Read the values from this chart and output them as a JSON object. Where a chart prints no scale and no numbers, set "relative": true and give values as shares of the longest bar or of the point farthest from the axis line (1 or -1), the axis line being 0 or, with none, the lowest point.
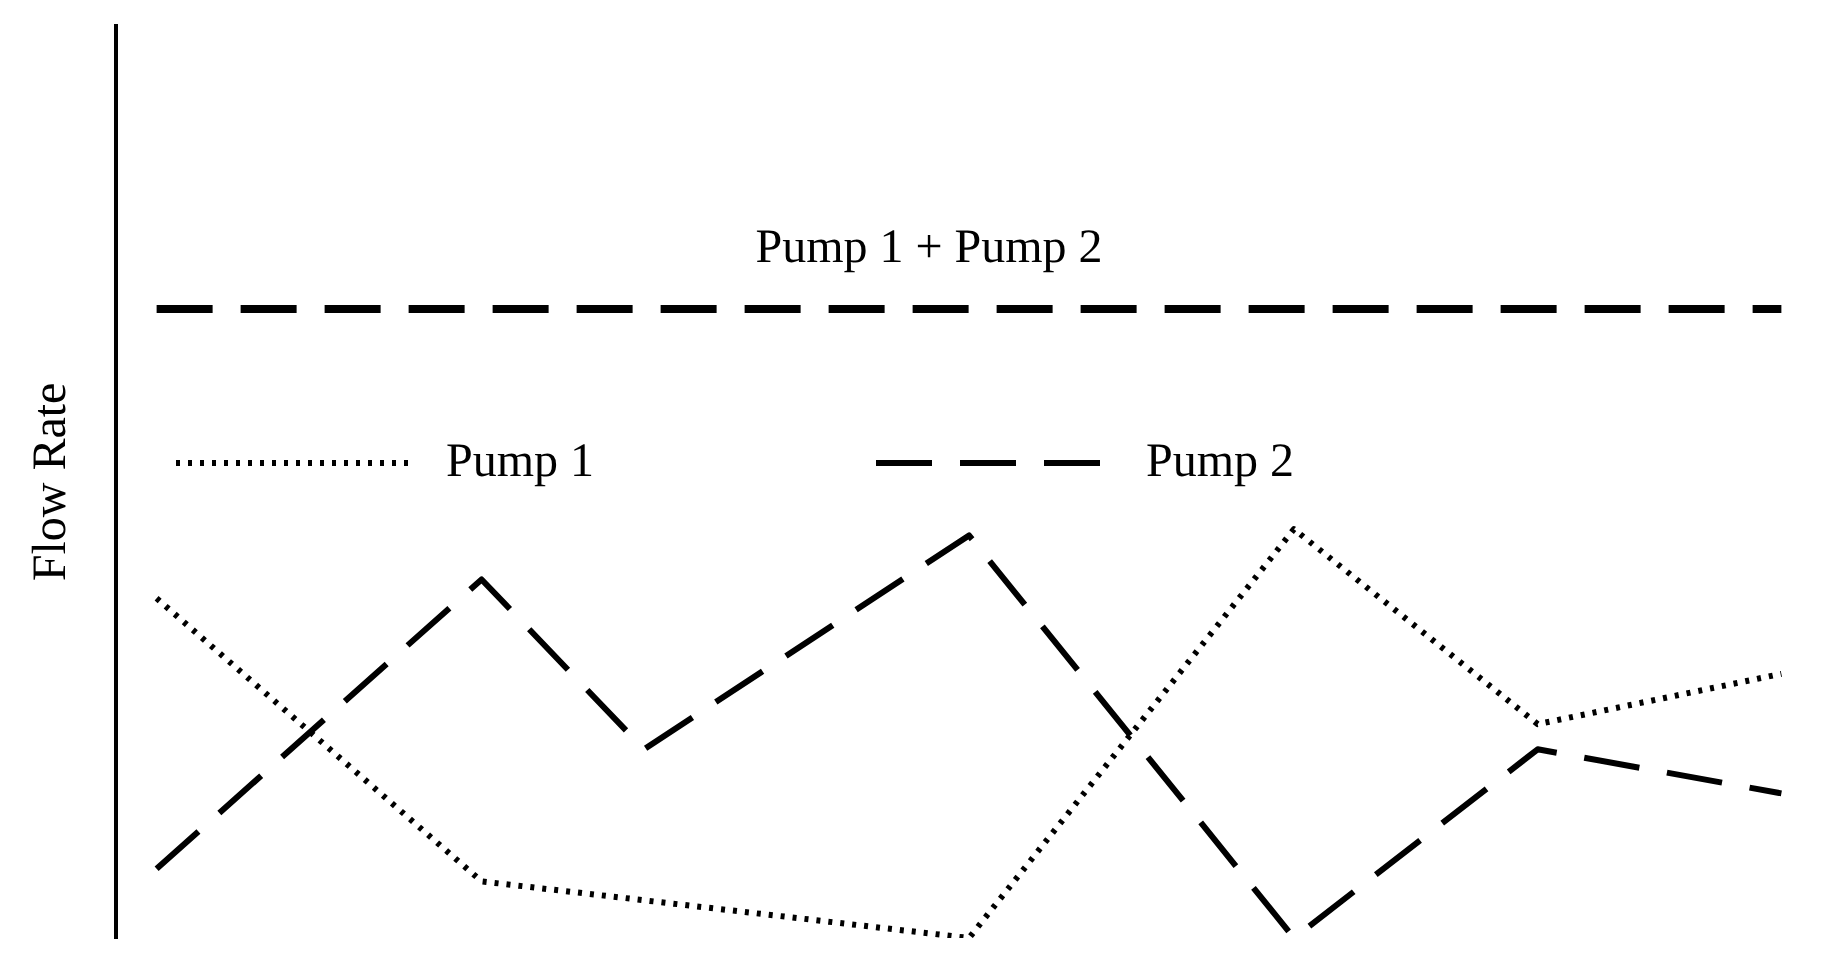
{
  "chart_data": {
    "type": "line",
    "ylabel": "Flow Rate",
    "relative": true,
    "grid": false,
    "legend": "top",
    "marker": "none",
    "categories": [
      null,
      null,
      null,
      null,
      null,
      null,
      null,
      null,
      null,
      null,
      null,
      null,
      null,
      null,
      null,
      null,
      null,
      null,
      null,
      null,
      null
    ],
    "series": [
      {
        "name": "Pump 1",
        "color": "#000000",
        "line_style": "dotted",
        "values": [
          0.54,
          null,
          null,
          null,
          0.09,
          null,
          null,
          null,
          null,
          null,
          0,
          null,
          null,
          null,
          0.65,
          null,
          null,
          0.34,
          null,
          null,
          0.42
        ]
      },
      {
        "name": "Pump 2",
        "color": "#000000",
        "line_style": "dashed",
        "values": [
          0.11,
          null,
          null,
          null,
          0.57,
          null,
          0.3,
          null,
          null,
          null,
          0.64,
          null,
          null,
          null,
          0,
          null,
          null,
          0.3,
          null,
          null,
          0.23
        ]
      },
      {
        "name": "Pump 1 + Pump 2",
        "color": "#000000",
        "line_style": "dashed",
        "values": [
          1,
          1,
          1,
          1,
          1,
          1,
          1,
          1,
          1,
          1,
          1,
          1,
          1,
          1,
          1,
          1,
          1,
          1,
          1,
          1,
          1
        ]
      }
    ]
  }
}
